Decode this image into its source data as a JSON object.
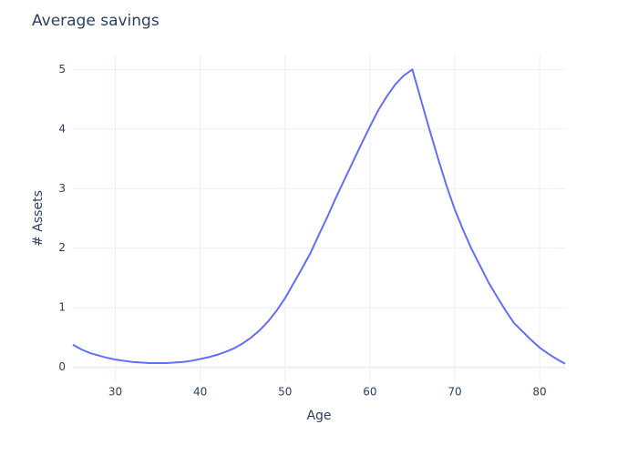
{
  "chart_data": {
    "type": "line",
    "title": "Average savings",
    "x_label": "Age",
    "y_label": "# Assets",
    "x": [
      25,
      26,
      27,
      28,
      29,
      30,
      31,
      32,
      33,
      34,
      35,
      36,
      37,
      38,
      39,
      40,
      41,
      42,
      43,
      44,
      45,
      46,
      47,
      48,
      49,
      50,
      51,
      52,
      53,
      54,
      55,
      56,
      57,
      58,
      59,
      60,
      61,
      62,
      63,
      64,
      65,
      66,
      67,
      68,
      69,
      70,
      71,
      72,
      73,
      74,
      75,
      76,
      77,
      78,
      79,
      80,
      81,
      82,
      83
    ],
    "series": [
      {
        "name": "Average savings",
        "color": "#636efa",
        "values": [
          0.38,
          0.3,
          0.24,
          0.2,
          0.16,
          0.13,
          0.11,
          0.09,
          0.08,
          0.07,
          0.07,
          0.07,
          0.08,
          0.09,
          0.11,
          0.14,
          0.17,
          0.21,
          0.26,
          0.32,
          0.4,
          0.5,
          0.62,
          0.77,
          0.95,
          1.16,
          1.41,
          1.66,
          1.92,
          2.23,
          2.53,
          2.85,
          3.15,
          3.45,
          3.75,
          4.04,
          4.32,
          4.55,
          4.75,
          4.9,
          5.0,
          4.5,
          4.0,
          3.52,
          3.06,
          2.65,
          2.3,
          1.98,
          1.7,
          1.42,
          1.18,
          0.95,
          0.74,
          0.6,
          0.46,
          0.33,
          0.23,
          0.14,
          0.06
        ]
      }
    ],
    "xlim": [
      25,
      83
    ],
    "ylim": [
      -0.25,
      5.25
    ],
    "xticks": [
      30,
      40,
      50,
      60,
      70,
      80
    ],
    "yticks": [
      0,
      1,
      2,
      3,
      4,
      5
    ],
    "grid": true
  }
}
